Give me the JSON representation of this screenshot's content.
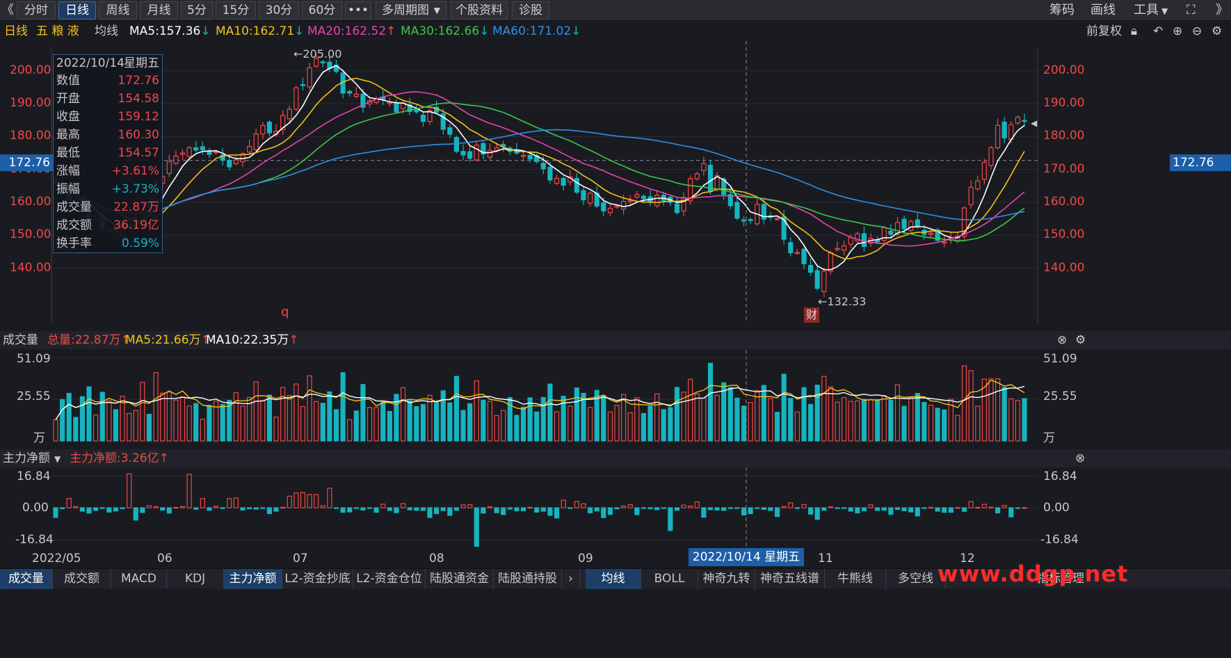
{
  "toolbar": {
    "back": "《",
    "buttons": [
      "分时",
      "日线",
      "周线",
      "月线",
      "5分",
      "15分",
      "30分",
      "60分",
      "•••",
      "多周期图",
      "个股资料",
      "诊股"
    ],
    "active": "日线",
    "right": [
      "筹码",
      "画线",
      "工具",
      "⛶",
      "》"
    ]
  },
  "info": {
    "period": "日线",
    "name": "五 粮 液",
    "ma_label": "均线",
    "ma5": "MA5:157.36",
    "ma10": "MA10:162.71",
    "ma20": "MA20:162.52",
    "ma30": "MA30:162.66",
    "ma60": "MA60:171.02",
    "adjust": "前复权"
  },
  "colors": {
    "up": "#f04848",
    "down": "#16b4c0",
    "ma5": "#ffffff",
    "ma10": "#f3c21b",
    "ma20": "#e544b0",
    "ma30": "#3ac84c",
    "ma60": "#2f8fe8",
    "accent": "#1d5ea8"
  },
  "tooltip": {
    "date": "2022/10/14",
    "weekday": "星期五",
    "rows": [
      {
        "k": "数值",
        "v": "172.76",
        "c": "up"
      },
      {
        "k": "开盘",
        "v": "154.58",
        "c": "up"
      },
      {
        "k": "收盘",
        "v": "159.12",
        "c": "up"
      },
      {
        "k": "最高",
        "v": "160.30",
        "c": "up"
      },
      {
        "k": "最低",
        "v": "154.57",
        "c": "up"
      },
      {
        "k": "涨幅",
        "v": "+3.61%",
        "c": "up"
      },
      {
        "k": "振幅",
        "v": "+3.73%",
        "c": "down"
      },
      {
        "k": "成交量",
        "v": "22.87万",
        "c": "up"
      },
      {
        "k": "成交额",
        "v": "36.19亿",
        "c": "up"
      },
      {
        "k": "换手率",
        "v": "0.59%",
        "c": "down"
      }
    ]
  },
  "price_axis": [
    "200.00",
    "190.00",
    "180.00",
    "170.00",
    "160.00",
    "150.00",
    "140.00"
  ],
  "crosshair_price": "172.76",
  "high_label": "←205.00",
  "low_label": "←132.33",
  "marker_q": "q",
  "marker_cai": "财",
  "volume": {
    "title": "成交量",
    "total": "总量:22.87万",
    "ma5": "MA5:21.66万",
    "ma10": "MA10:22.35万",
    "axis": [
      "51.09",
      "25.55",
      "万"
    ]
  },
  "netflow": {
    "title": "主力净额",
    "value": "主力净额:3.26亿",
    "axis": [
      "16.84",
      "0.00",
      "-16.84"
    ]
  },
  "dates": [
    "2022/05",
    "06",
    "07",
    "08",
    "09",
    "11",
    "12"
  ],
  "crosshair_date": "2022/10/14 星期五",
  "bottom_tabs": [
    "成交量",
    "成交额",
    "MACD",
    "KDJ",
    "主力净额",
    "L2-资金抄底",
    "L2-资金仓位",
    "陆股通资金",
    "陆股通持股"
  ],
  "bottom_active": [
    "成交量",
    "主力净额"
  ],
  "bottom_right_tabs": [
    "均线",
    "BOLL",
    "神奇九转",
    "神奇五线谱",
    "牛熊线",
    "多空线"
  ],
  "bottom_right_active": "均线",
  "bottom_far": "指标管理",
  "watermark": "www.ddgp.net",
  "chart_data": {
    "type": "candlestick",
    "ylim": [
      128,
      208
    ],
    "closes": [
      165.6,
      163.1,
      160.8,
      160.7,
      158.0,
      154.8,
      155.0,
      151.8,
      152.0,
      151.1,
      153.2,
      154.4,
      154.8,
      159.2,
      158.5,
      165.8,
      167.8,
      172.4,
      174.1,
      175.0,
      176.6,
      175.9,
      176.0,
      174.6,
      175.4,
      172.8,
      170.8,
      172.9,
      174.8,
      177.0,
      180.8,
      183.4,
      181.1,
      181.6,
      186.4,
      188.3,
      194.8,
      195.6,
      200.9,
      203.7,
      202.6,
      200.7,
      199.8,
      193.2,
      193.2,
      192.9,
      188.9,
      190.9,
      191.5,
      191.2,
      190.3,
      187.5,
      190.2,
      187.6,
      187.5,
      184.6,
      187.9,
      187.4,
      182.2,
      180.7,
      175.5,
      174.4,
      173.4,
      177.4,
      174.7,
      175.8,
      176.6,
      177.0,
      175.5,
      175.0,
      174.3,
      173.2,
      172.4,
      170.2,
      166.8,
      167.3,
      165.2,
      167.8,
      163.1,
      160.8,
      162.8,
      158.9,
      157.4,
      158.2,
      158.9,
      160.3,
      160.6,
      162.4,
      161.2,
      160.0,
      162.2,
      160.6,
      160.0,
      156.9,
      161.5,
      167.2,
      168.7,
      171.8,
      163.4,
      168.1,
      162.4,
      159.0,
      155.2,
      154.3,
      154.5,
      159.4,
      154.9,
      155.5,
      155.1,
      148.8,
      144.7,
      144.8,
      141.4,
      138.8,
      133.9,
      139.1,
      144.7,
      146.0,
      146.8,
      149.3,
      150.5,
      146.6,
      149.1,
      148.0,
      152.3,
      150.3,
      153.9,
      152.0,
      154.2,
      152.6,
      150.3,
      150.7,
      148.5,
      148.0,
      149.2,
      149.7,
      158.3,
      164.6,
      166.5,
      172.2,
      176.6,
      183.4,
      179.6,
      183.6,
      185.9,
      184.6
    ],
    "ma_series": [
      "MA5",
      "MA10",
      "MA20",
      "MA30",
      "MA60"
    ],
    "volume_axis": [
      0,
      51.09
    ],
    "netflow_axis": [
      -16.84,
      16.84
    ],
    "netflow": [
      -5.1,
      -0.5,
      4.9,
      0.6,
      -1.8,
      -2.8,
      -1.4,
      -0.1,
      -2.3,
      -1.7,
      -0.5,
      17.8,
      -6.5,
      -2.5,
      1.1,
      0.6,
      -1.2,
      -2.8,
      0.2,
      0.6,
      17.6,
      -0.8,
      4.8,
      -1.3,
      0.8,
      -0.4,
      4.8,
      5.2,
      -1.2,
      -0.5,
      -0.7,
      -0.1,
      -3.1,
      -1.8,
      0.2,
      6.1,
      7.8,
      8.0,
      6.9,
      7.0,
      1.1,
      10.3,
      -0.3,
      -2.4,
      -2.2,
      -0.3,
      -1.2,
      -0.1,
      -2.4,
      1.9,
      -1.4,
      -2.6,
      2.2,
      -1.1,
      -1.3,
      -1.4,
      -5.1,
      -3.1,
      -1.5,
      -4.0,
      -1.3,
      1.5,
      1.6,
      -20.3,
      -2.8,
      0.5,
      -2.6,
      -3.6,
      -0.7,
      -1.6,
      -1.6,
      0.2,
      -2.3,
      -1.8,
      -4.0,
      -5.4,
      4.0,
      -0.1,
      3.3,
      2.1,
      -2.7,
      -1.7,
      -5.2,
      -3.5,
      -0.6,
      0.9,
      1.6,
      -3.6,
      -0.2,
      -0.5,
      -1.0,
      -0.1,
      -12.0,
      -1.3,
      1.4,
      0.9,
      3.1,
      -5.0,
      -1.0,
      -1.2,
      -1.4,
      -0.4,
      -0.3,
      -3.8,
      -3.1,
      -0.3,
      -0.9,
      -1.4,
      -4.6,
      0.6,
      2.6,
      -0.4,
      1.7,
      -3.4,
      -6.1,
      -1.3,
      0.5,
      -0.2,
      -0.3,
      -1.8,
      -2.7,
      -1.6,
      1.5,
      -1.4,
      -1.3,
      -3.5,
      -0.9,
      -1.6,
      -2.2,
      -4.3,
      -0.2,
      0.2,
      -1.8,
      -2.4,
      -2.4,
      0.1,
      -1.9,
      3.2,
      0.2,
      1.8,
      0.3,
      -2.7,
      1.2,
      -4.8,
      -0.2,
      0.1
    ]
  }
}
